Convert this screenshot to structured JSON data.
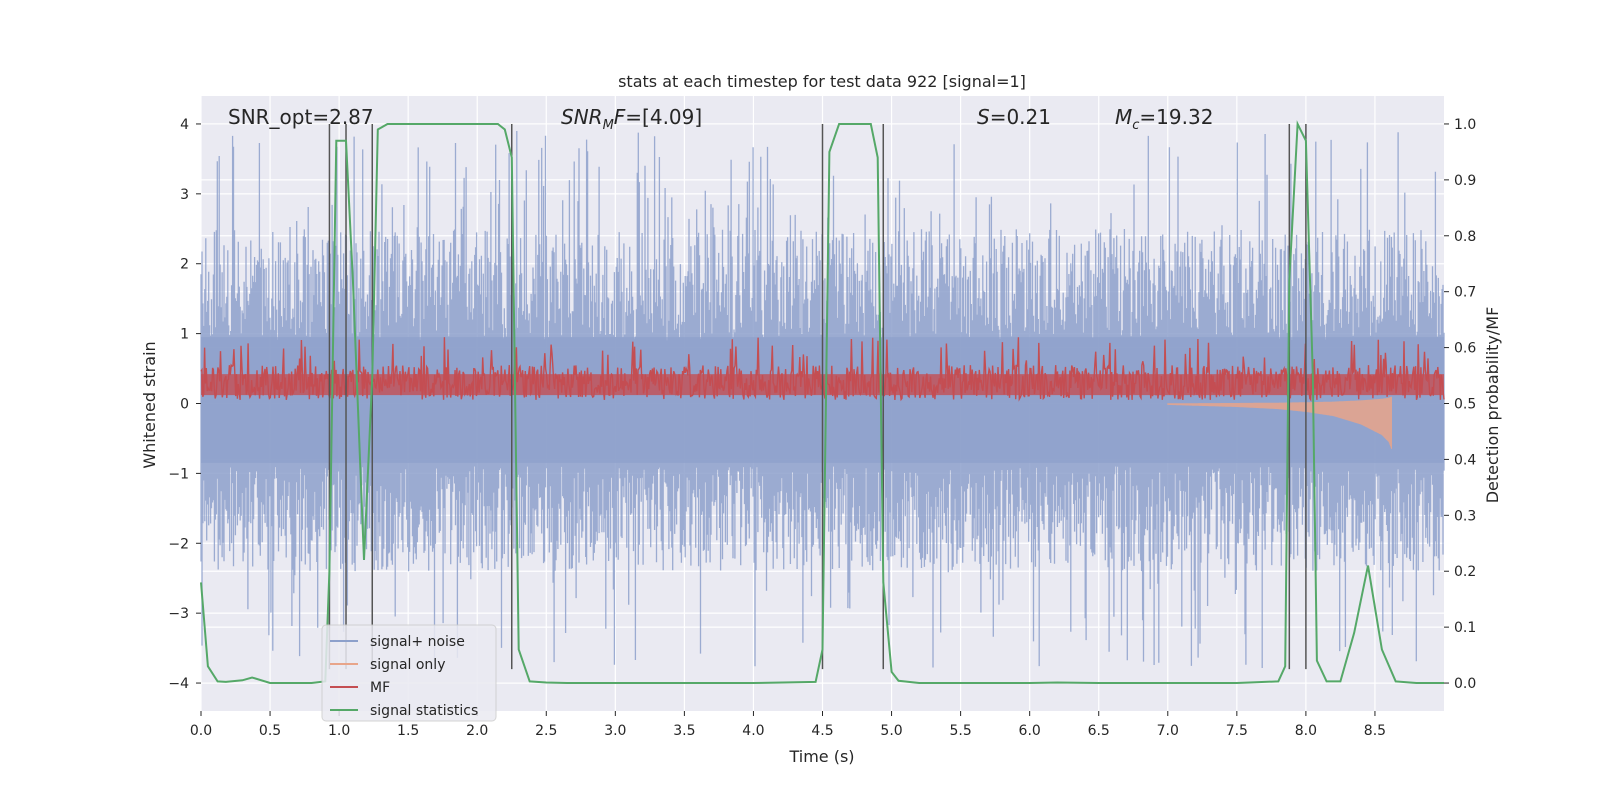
{
  "chart_data": {
    "type": "line",
    "title": "stats at each timestep for test data 922 [signal=1]",
    "xlabel": "Time (s)",
    "ylabel_left": "Whitened strain",
    "ylabel_right": "Detection probability/MF",
    "xlim": [
      0.0,
      9.0
    ],
    "ylim_left": [
      -4.4,
      4.4
    ],
    "ylim_right": [
      -0.05,
      1.05
    ],
    "x_ticks": [
      0.0,
      0.5,
      1.0,
      1.5,
      2.0,
      2.5,
      3.0,
      3.5,
      4.0,
      4.5,
      5.0,
      5.5,
      6.0,
      6.5,
      7.0,
      7.5,
      8.0,
      8.5
    ],
    "x_tick_labels": [
      "0.0",
      "0.5",
      "1.0",
      "1.5",
      "2.0",
      "2.5",
      "3.0",
      "3.5",
      "4.0",
      "4.5",
      "5.0",
      "5.5",
      "6.0",
      "6.5",
      "7.0",
      "7.5",
      "8.0",
      "8.5"
    ],
    "y_left_ticks": [
      4,
      3,
      2,
      1,
      0,
      -1,
      -2,
      -3,
      -4
    ],
    "y_left_tick_labels": [
      "4",
      "3",
      "2",
      "1",
      "0",
      "−1",
      "−2",
      "−3",
      "−4"
    ],
    "y_right_ticks": [
      1.0,
      0.9,
      0.8,
      0.7,
      0.6,
      0.5,
      0.4,
      0.3,
      0.2,
      0.1,
      0.0
    ],
    "y_right_tick_labels": [
      "1.0",
      "0.9",
      "0.8",
      "0.7",
      "0.6",
      "0.5",
      "0.4",
      "0.3",
      "0.2",
      "0.1",
      "0.0"
    ],
    "grid": true,
    "legend_position": "bottom-left",
    "legend": [
      {
        "label": "signal+ noise",
        "color": "#8da0cb"
      },
      {
        "label": "signal only",
        "color": "#e8a58a"
      },
      {
        "label": "MF",
        "color": "#c44e52"
      },
      {
        "label": "signal statistics",
        "color": "#55a868"
      }
    ],
    "annotations": [
      {
        "name": "snr-opt",
        "prefix": "SNR_opt=",
        "value": "2.87"
      },
      {
        "name": "snr-mf",
        "prefix": "SNR",
        "sub": "M",
        "mid": "F=",
        "value": "[4.09]"
      },
      {
        "name": "s-value",
        "prefix": "S",
        "value": "=0.21"
      },
      {
        "name": "mc-value",
        "prefix": "M",
        "sub": "c",
        "value": "=19.32"
      }
    ],
    "vertical_lines_x": [
      0.93,
      1.05,
      1.24,
      2.25,
      4.5,
      4.94,
      7.88,
      8.0
    ],
    "series": [
      {
        "name": "signal statistics",
        "axis": "right",
        "color": "#55a868",
        "x": [
          0.0,
          0.05,
          0.12,
          0.18,
          0.3,
          0.37,
          0.5,
          0.6,
          0.8,
          0.9,
          0.93,
          0.98,
          1.05,
          1.1,
          1.18,
          1.24,
          1.28,
          1.35,
          1.4,
          1.6,
          2.0,
          2.15,
          2.2,
          2.25,
          2.3,
          2.38,
          2.5,
          2.65,
          3.0,
          3.5,
          4.0,
          4.45,
          4.5,
          4.55,
          4.62,
          4.68,
          4.85,
          4.9,
          4.94,
          5.0,
          5.05,
          5.2,
          5.5,
          6.0,
          6.2,
          6.5,
          7.0,
          7.5,
          7.8,
          7.85,
          7.88,
          7.94,
          8.0,
          8.05,
          8.08,
          8.15,
          8.25,
          8.35,
          8.45,
          8.55,
          8.65,
          8.8,
          9.0
        ],
        "y": [
          0.18,
          0.03,
          0.003,
          0.002,
          0.005,
          0.01,
          0.0,
          0.0,
          0.0,
          0.003,
          0.2,
          0.97,
          0.97,
          0.72,
          0.22,
          0.55,
          0.99,
          1.0,
          1.0,
          1.0,
          1.0,
          1.0,
          0.99,
          0.94,
          0.06,
          0.003,
          0.001,
          0.0,
          0.0,
          0.0,
          0.0,
          0.002,
          0.06,
          0.95,
          1.0,
          1.0,
          1.0,
          0.94,
          0.18,
          0.02,
          0.004,
          0.0,
          0.0,
          0.0,
          0.001,
          0.0,
          0.0,
          0.0,
          0.003,
          0.03,
          0.72,
          1.0,
          0.97,
          0.55,
          0.04,
          0.003,
          0.003,
          0.09,
          0.21,
          0.06,
          0.003,
          0.0,
          0.0
        ]
      },
      {
        "name": "signal only",
        "axis": "left",
        "color": "#e8a58a",
        "x": [
          7.0,
          7.5,
          7.8,
          8.0,
          8.2,
          8.4,
          8.55,
          8.6,
          8.62,
          8.65
        ],
        "y_envelope": [
          0.02,
          0.05,
          0.08,
          0.12,
          0.18,
          0.3,
          0.45,
          0.55,
          0.65,
          0.0
        ]
      },
      {
        "name": "signal+ noise",
        "axis": "left",
        "color": "#8da0cb",
        "description_values": {
          "typical_range": [
            -2.5,
            3.0
          ],
          "extremes": [
            -3.8,
            4.0
          ]
        }
      },
      {
        "name": "MF",
        "axis": "left",
        "color": "#c44e52",
        "description_values": {
          "typical_range": [
            0.0,
            0.6
          ],
          "max": 1.0
        }
      }
    ]
  }
}
